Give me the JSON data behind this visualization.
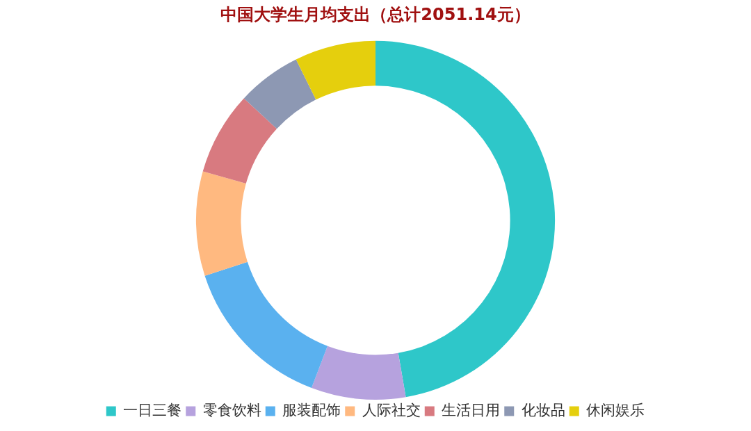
{
  "chart_data": {
    "type": "donut",
    "title": "中国大学生月均支出（总计2051.14元）",
    "categories": [
      "一日三餐",
      "零食饮料",
      "服装配饰",
      "人际社交",
      "生活日用",
      "化妆品",
      "休闲娱乐"
    ],
    "values": [
      47.3,
      8.5,
      14.2,
      9.4,
      7.5,
      5.8,
      7.3
    ],
    "colors": [
      "#2ec7c9",
      "#b6a2de",
      "#5ab1ef",
      "#ffb980",
      "#d87a80",
      "#8d98b3",
      "#e5cf0d"
    ],
    "legend": "bottom"
  }
}
